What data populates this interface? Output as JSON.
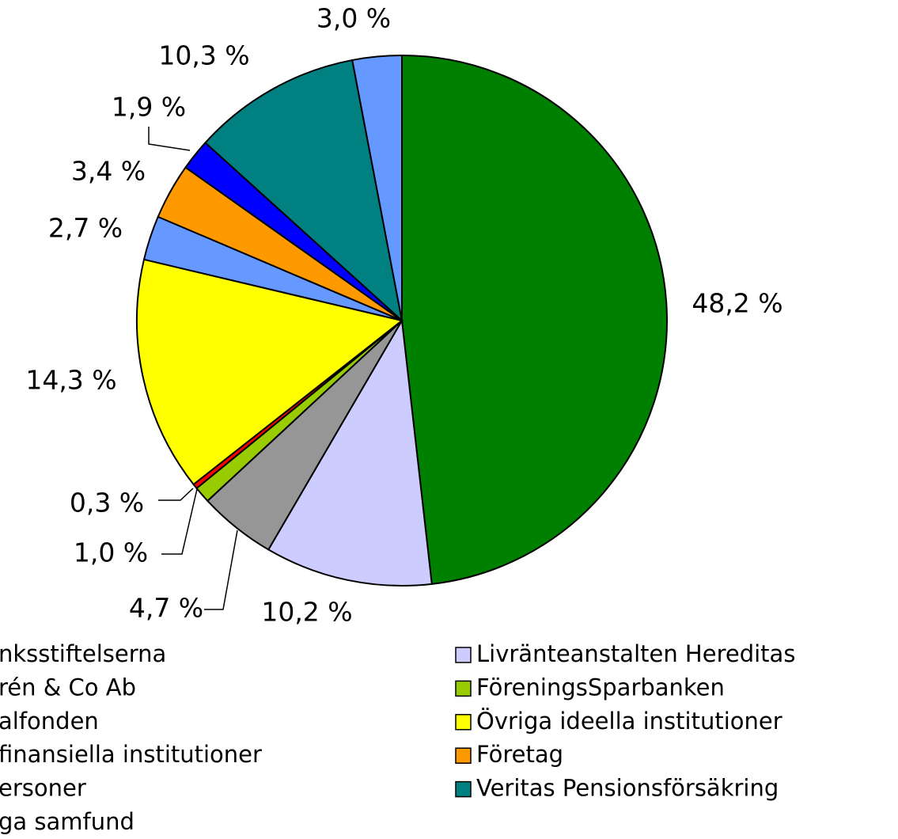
{
  "chart_data": {
    "type": "pie",
    "categories": [
      "nksstiftelserna",
      "Livränteanstalten Hereditas",
      "rén & Co Ab",
      "FöreningsSparbanken",
      "alfonden",
      "Övriga ideella institutioner",
      "finansiella institutioner",
      "Företag",
      "ersoner",
      "Veritas Pensionsförsäkring",
      "ga samfund"
    ],
    "values": [
      48.2,
      10.2,
      4.7,
      1.0,
      0.3,
      14.3,
      2.7,
      3.4,
      1.9,
      10.3,
      3.0
    ],
    "value_labels": [
      "48,2 %",
      "10,2 %",
      "4,7 %",
      "1,0 %",
      "0,3 %",
      "14,3 %",
      "2,7 %",
      "3,4 %",
      "1,9 %",
      "10,3 %",
      "3,0 %"
    ],
    "colors": [
      "#008000",
      "#ccccff",
      "#969696",
      "#99cc00",
      "#ff0000",
      "#ffff00",
      "#6699ff",
      "#ff9900",
      "#0000ff",
      "#008080",
      "#6699ff"
    ]
  }
}
